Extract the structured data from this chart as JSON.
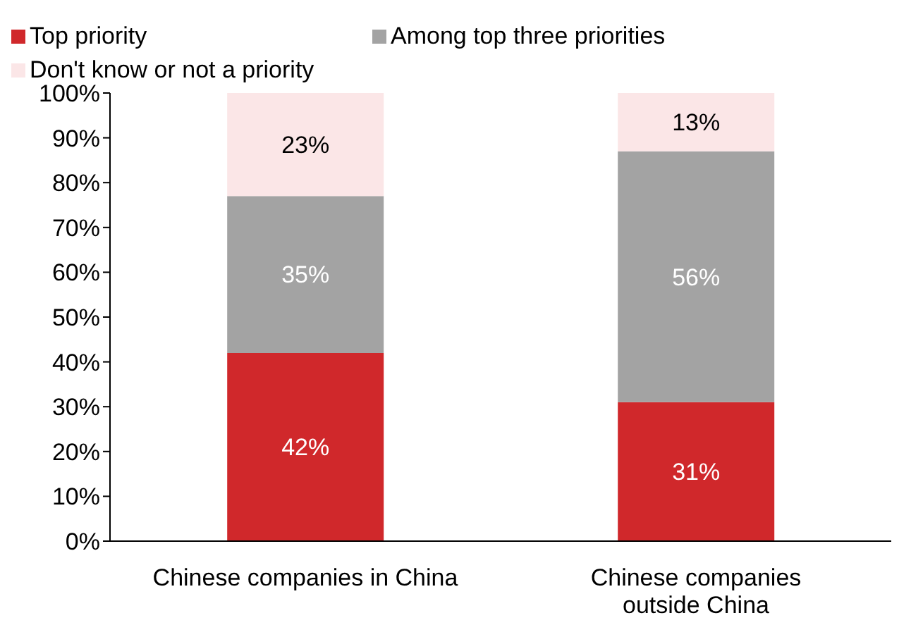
{
  "chart_data": {
    "type": "bar",
    "stacked": true,
    "categories": [
      "Chinese companies in China",
      "Chinese companies outside China"
    ],
    "series": [
      {
        "name": "Top priority",
        "color": "#d0282b",
        "values": [
          42,
          31
        ],
        "value_labels": [
          "42%",
          "31%"
        ]
      },
      {
        "name": "Among top three priorities",
        "color": "#a3a3a3",
        "values": [
          35,
          56
        ],
        "value_labels": [
          "35%",
          "56%"
        ]
      },
      {
        "name": "Don't know or not a priority",
        "color": "#fbe6e7",
        "values": [
          23,
          13
        ],
        "value_labels": [
          "23%",
          "13%"
        ]
      }
    ],
    "ylim": [
      0,
      100
    ],
    "yticks": [
      {
        "value": 0,
        "label": "0%"
      },
      {
        "value": 10,
        "label": "10%"
      },
      {
        "value": 20,
        "label": "20%"
      },
      {
        "value": 30,
        "label": "30%"
      },
      {
        "value": 40,
        "label": "40%"
      },
      {
        "value": 50,
        "label": "50%"
      },
      {
        "value": 60,
        "label": "60%"
      },
      {
        "value": 70,
        "label": "70%"
      },
      {
        "value": 80,
        "label": "80%"
      },
      {
        "value": 90,
        "label": "90%"
      },
      {
        "value": 100,
        "label": "100%"
      }
    ],
    "grid": false,
    "legend": "top left"
  }
}
